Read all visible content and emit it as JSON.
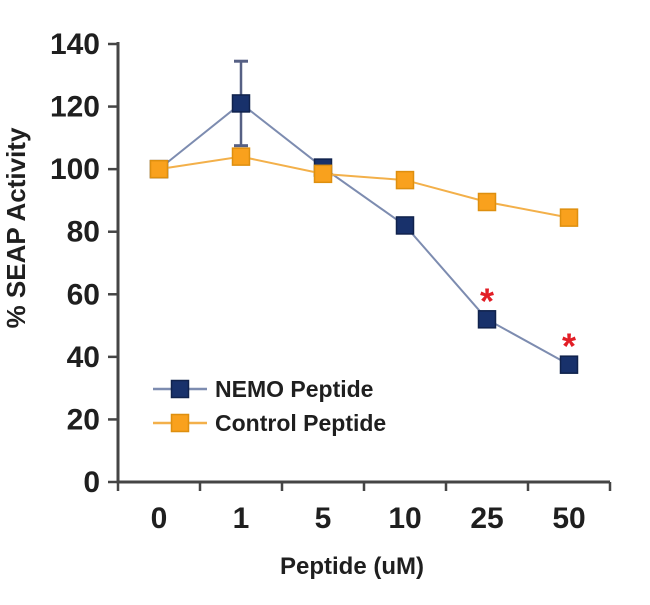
{
  "chart_data": {
    "type": "line",
    "title": "",
    "xlabel": "Peptide (uM)",
    "ylabel": "% SEAP Activity",
    "categories": [
      "0",
      "1",
      "5",
      "10",
      "25",
      "50"
    ],
    "series": [
      {
        "name": "NEMO Peptide",
        "values": [
          100,
          121,
          100.5,
          82,
          52,
          37.5
        ],
        "marker_color": "#18316B",
        "marker_edge_color": "#10224C",
        "line_color": "#7D8CB0"
      },
      {
        "name": "Control Peptide",
        "values": [
          100,
          104,
          98.5,
          96.5,
          89.5,
          84.5
        ],
        "marker_color": "#F9A11D",
        "marker_edge_color": "#DE8F0F",
        "line_color": "#F3B04A"
      }
    ],
    "error_bars": [
      {
        "series": "NEMO Peptide",
        "category_index": 1,
        "upper": 134.5,
        "lower": 107.5,
        "color": "#566084"
      }
    ],
    "annotations": [
      {
        "text": "*",
        "series": "NEMO Peptide",
        "category_index": 4,
        "color": "#E21E26"
      },
      {
        "text": "*",
        "series": "NEMO Peptide",
        "category_index": 5,
        "color": "#E21E26"
      }
    ],
    "ylim": [
      0,
      140
    ],
    "yticks": [
      0,
      20,
      40,
      60,
      80,
      100,
      120,
      140
    ],
    "grid": false,
    "legend_position": "inside-lower-left",
    "axis_color": "#454545",
    "text_color": "#1F1F1F",
    "background": "#FFFFFF"
  }
}
